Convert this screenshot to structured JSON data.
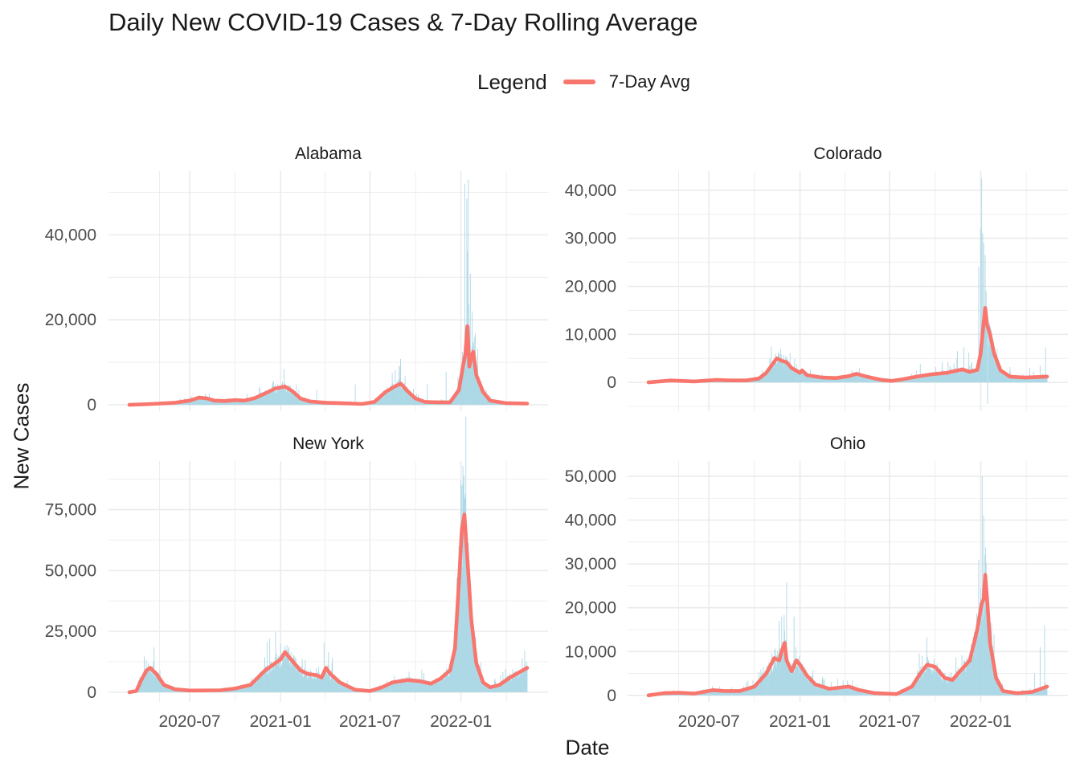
{
  "chart_data": {
    "type": "bar",
    "title": "Daily New COVID-19 Cases & 7-Day Rolling Average",
    "xlabel": "Date",
    "ylabel": "New Cases",
    "legend": {
      "title": "Legend",
      "placement": "top",
      "entries": [
        {
          "label": "7-Day Avg",
          "color": "#F8766D"
        }
      ]
    },
    "colors": {
      "bars": "#ADD8E6",
      "line": "#F8766D",
      "grid": "#EBEBEB"
    },
    "grid": true,
    "date_range": [
      "2020-03-01",
      "2022-05-15"
    ],
    "x_ticks": [
      "2020-07-01",
      "2021-01-01",
      "2021-07-01",
      "2022-01-01"
    ],
    "x_tick_labels": [
      "2020-07",
      "2021-01",
      "2021-07",
      "2022-01"
    ],
    "panels": [
      {
        "name": "Alabama",
        "ylim": [
          -1500,
          55000
        ],
        "y_ticks": [
          0,
          20000,
          40000
        ],
        "y_tick_labels": [
          "0",
          "20,000",
          "40,000"
        ],
        "avg_points": [
          [
            "2020-03-01",
            0
          ],
          [
            "2020-04-15",
            200
          ],
          [
            "2020-06-01",
            500
          ],
          [
            "2020-07-01",
            1000
          ],
          [
            "2020-07-20",
            1700
          ],
          [
            "2020-08-05",
            1500
          ],
          [
            "2020-08-20",
            1000
          ],
          [
            "2020-09-10",
            900
          ],
          [
            "2020-10-01",
            1100
          ],
          [
            "2020-10-20",
            1000
          ],
          [
            "2020-11-10",
            1600
          ],
          [
            "2020-12-01",
            2700
          ],
          [
            "2020-12-20",
            3800
          ],
          [
            "2021-01-10",
            4300
          ],
          [
            "2021-01-25",
            3200
          ],
          [
            "2021-02-10",
            1500
          ],
          [
            "2021-03-01",
            800
          ],
          [
            "2021-04-01",
            500
          ],
          [
            "2021-05-01",
            400
          ],
          [
            "2021-06-15",
            200
          ],
          [
            "2021-07-10",
            700
          ],
          [
            "2021-08-01",
            3000
          ],
          [
            "2021-08-20",
            4300
          ],
          [
            "2021-09-01",
            5000
          ],
          [
            "2021-09-15",
            3200
          ],
          [
            "2021-10-01",
            1500
          ],
          [
            "2021-10-20",
            700
          ],
          [
            "2021-11-15",
            600
          ],
          [
            "2021-12-10",
            600
          ],
          [
            "2021-12-28",
            3500
          ],
          [
            "2022-01-05",
            9000
          ],
          [
            "2022-01-10",
            12000
          ],
          [
            "2022-01-14",
            18500
          ],
          [
            "2022-01-18",
            9000
          ],
          [
            "2022-01-22",
            11500
          ],
          [
            "2022-01-26",
            12500
          ],
          [
            "2022-02-01",
            7000
          ],
          [
            "2022-02-15",
            3000
          ],
          [
            "2022-03-01",
            1000
          ],
          [
            "2022-04-01",
            400
          ],
          [
            "2022-05-15",
            300
          ]
        ],
        "bar_bursts": [
          [
            "2020-08-01",
            1600
          ],
          [
            "2020-10-25",
            2600
          ],
          [
            "2020-12-15",
            4600
          ],
          [
            "2021-01-09",
            5200
          ],
          [
            "2021-01-20",
            4400
          ],
          [
            "2021-03-15",
            3500
          ],
          [
            "2021-06-01",
            4800
          ],
          [
            "2021-08-15",
            7500
          ],
          [
            "2021-09-01",
            10800
          ],
          [
            "2021-09-10",
            6800
          ],
          [
            "2021-10-25",
            5000
          ],
          [
            "2021-12-02",
            7800
          ],
          [
            "2021-12-30",
            4300
          ],
          [
            "2022-01-04",
            12500
          ],
          [
            "2022-01-09",
            52000
          ],
          [
            "2022-01-13",
            48500
          ],
          [
            "2022-01-16",
            53000
          ],
          [
            "2022-01-20",
            30800
          ],
          [
            "2022-01-24",
            22000
          ],
          [
            "2022-01-28",
            16000
          ],
          [
            "2022-02-05",
            6500
          ],
          [
            "2022-02-20",
            2600
          ]
        ]
      },
      {
        "name": "Colorado",
        "ylim": [
          -6000,
          44000
        ],
        "y_ticks": [
          0,
          10000,
          20000,
          30000,
          40000
        ],
        "y_tick_labels": [
          "0",
          "10,000",
          "20,000",
          "30,000",
          "40,000"
        ],
        "avg_points": [
          [
            "2020-03-01",
            0
          ],
          [
            "2020-04-15",
            400
          ],
          [
            "2020-06-01",
            200
          ],
          [
            "2020-07-15",
            500
          ],
          [
            "2020-08-15",
            400
          ],
          [
            "2020-09-15",
            400
          ],
          [
            "2020-10-10",
            800
          ],
          [
            "2020-10-25",
            2000
          ],
          [
            "2020-11-08",
            4000
          ],
          [
            "2020-11-15",
            5000
          ],
          [
            "2020-11-25",
            4500
          ],
          [
            "2020-12-05",
            4200
          ],
          [
            "2020-12-15",
            3000
          ],
          [
            "2021-01-01",
            2000
          ],
          [
            "2021-01-05",
            2500
          ],
          [
            "2021-01-15",
            1500
          ],
          [
            "2021-02-15",
            1000
          ],
          [
            "2021-03-15",
            900
          ],
          [
            "2021-04-10",
            1300
          ],
          [
            "2021-04-25",
            1800
          ],
          [
            "2021-05-15",
            1200
          ],
          [
            "2021-06-15",
            500
          ],
          [
            "2021-07-05",
            300
          ],
          [
            "2021-07-25",
            600
          ],
          [
            "2021-08-25",
            1200
          ],
          [
            "2021-09-25",
            1700
          ],
          [
            "2021-10-25",
            2000
          ],
          [
            "2021-11-15",
            2500
          ],
          [
            "2021-11-25",
            2700
          ],
          [
            "2021-12-10",
            2200
          ],
          [
            "2021-12-25",
            2600
          ],
          [
            "2022-01-01",
            6000
          ],
          [
            "2022-01-06",
            11500
          ],
          [
            "2022-01-10",
            15500
          ],
          [
            "2022-01-14",
            12000
          ],
          [
            "2022-01-20",
            10000
          ],
          [
            "2022-01-28",
            6000
          ],
          [
            "2022-02-10",
            2500
          ],
          [
            "2022-03-01",
            1200
          ],
          [
            "2022-04-01",
            1000
          ],
          [
            "2022-05-15",
            1200
          ]
        ],
        "bar_bursts": [
          [
            "2020-11-20",
            6000
          ],
          [
            "2020-12-05",
            5500
          ],
          [
            "2021-09-01",
            3800
          ],
          [
            "2021-10-15",
            4300
          ],
          [
            "2021-11-15",
            6500
          ],
          [
            "2021-11-28",
            7300
          ],
          [
            "2021-12-08",
            6200
          ],
          [
            "2021-12-28",
            24000
          ],
          [
            "2022-01-01",
            32000
          ],
          [
            "2022-01-03",
            42500
          ],
          [
            "2022-01-05",
            31000
          ],
          [
            "2022-01-07",
            29000
          ],
          [
            "2022-01-10",
            26500
          ],
          [
            "2022-01-12",
            19000
          ],
          [
            "2022-01-15",
            -4500
          ],
          [
            "2022-02-05",
            4200
          ],
          [
            "2022-03-01",
            3200
          ],
          [
            "2022-04-10",
            3000
          ],
          [
            "2022-05-01",
            3500
          ],
          [
            "2022-05-12",
            7300
          ]
        ]
      },
      {
        "name": "New York",
        "ylim": [
          -4000,
          95000
        ],
        "y_ticks": [
          0,
          25000,
          50000,
          75000
        ],
        "y_tick_labels": [
          "0",
          "25,000",
          "50,000",
          "75,000"
        ],
        "avg_points": [
          [
            "2020-03-01",
            0
          ],
          [
            "2020-03-15",
            500
          ],
          [
            "2020-03-25",
            5000
          ],
          [
            "2020-04-05",
            9000
          ],
          [
            "2020-04-12",
            10000
          ],
          [
            "2020-04-25",
            7500
          ],
          [
            "2020-05-10",
            3000
          ],
          [
            "2020-06-01",
            1200
          ],
          [
            "2020-07-01",
            700
          ],
          [
            "2020-09-01",
            800
          ],
          [
            "2020-10-01",
            1500
          ],
          [
            "2020-11-01",
            3000
          ],
          [
            "2020-12-01",
            9000
          ],
          [
            "2020-12-15",
            11000
          ],
          [
            "2021-01-01",
            13500
          ],
          [
            "2021-01-10",
            16500
          ],
          [
            "2021-01-20",
            14000
          ],
          [
            "2021-02-10",
            9000
          ],
          [
            "2021-02-25",
            7500
          ],
          [
            "2021-03-15",
            7000
          ],
          [
            "2021-03-25",
            6000
          ],
          [
            "2021-04-03",
            10000
          ],
          [
            "2021-04-12",
            7500
          ],
          [
            "2021-05-01",
            4000
          ],
          [
            "2021-06-01",
            1000
          ],
          [
            "2021-07-01",
            500
          ],
          [
            "2021-07-25",
            2000
          ],
          [
            "2021-08-15",
            4000
          ],
          [
            "2021-09-15",
            5000
          ],
          [
            "2021-10-10",
            4500
          ],
          [
            "2021-11-01",
            3500
          ],
          [
            "2021-11-20",
            5500
          ],
          [
            "2021-12-10",
            9000
          ],
          [
            "2021-12-20",
            18000
          ],
          [
            "2021-12-28",
            45000
          ],
          [
            "2022-01-03",
            67000
          ],
          [
            "2022-01-08",
            73000
          ],
          [
            "2022-01-14",
            55000
          ],
          [
            "2022-01-22",
            30000
          ],
          [
            "2022-02-01",
            12000
          ],
          [
            "2022-02-15",
            4000
          ],
          [
            "2022-03-01",
            2000
          ],
          [
            "2022-03-20",
            3000
          ],
          [
            "2022-04-10",
            6000
          ],
          [
            "2022-05-15",
            10000
          ]
        ],
        "bar_bursts": [
          [
            "2020-04-08",
            12000
          ],
          [
            "2021-01-10",
            19000
          ],
          [
            "2021-03-30",
            20500
          ],
          [
            "2021-12-28",
            60000
          ],
          [
            "2022-01-01",
            87000
          ],
          [
            "2022-01-03",
            85000
          ],
          [
            "2022-01-05",
            93000
          ],
          [
            "2022-01-07",
            89000
          ],
          [
            "2022-01-09",
            80000
          ],
          [
            "2022-01-12",
            58000
          ],
          [
            "2022-05-05",
            14000
          ],
          [
            "2022-05-10",
            17000
          ]
        ]
      },
      {
        "name": "Ohio",
        "ylim": [
          -1500,
          53500
        ],
        "y_ticks": [
          0,
          10000,
          20000,
          30000,
          40000,
          50000
        ],
        "y_tick_labels": [
          "0",
          "10,000",
          "20,000",
          "30,000",
          "40,000",
          "50,000"
        ],
        "avg_points": [
          [
            "2020-03-01",
            0
          ],
          [
            "2020-04-01",
            500
          ],
          [
            "2020-05-01",
            600
          ],
          [
            "2020-06-01",
            400
          ],
          [
            "2020-07-10",
            1200
          ],
          [
            "2020-08-01",
            1000
          ],
          [
            "2020-09-01",
            1000
          ],
          [
            "2020-10-01",
            2000
          ],
          [
            "2020-10-25",
            5000
          ],
          [
            "2020-11-10",
            8500
          ],
          [
            "2020-11-20",
            8000
          ],
          [
            "2020-11-25",
            10000
          ],
          [
            "2020-12-01",
            12000
          ],
          [
            "2020-12-05",
            8000
          ],
          [
            "2020-12-15",
            5500
          ],
          [
            "2020-12-25",
            8000
          ],
          [
            "2021-01-01",
            7000
          ],
          [
            "2021-01-15",
            4500
          ],
          [
            "2021-02-01",
            2500
          ],
          [
            "2021-03-01",
            1500
          ],
          [
            "2021-04-10",
            2000
          ],
          [
            "2021-05-01",
            1200
          ],
          [
            "2021-06-01",
            500
          ],
          [
            "2021-07-15",
            300
          ],
          [
            "2021-08-15",
            2000
          ],
          [
            "2021-09-01",
            5000
          ],
          [
            "2021-09-15",
            7000
          ],
          [
            "2021-10-01",
            6500
          ],
          [
            "2021-10-20",
            4000
          ],
          [
            "2021-11-05",
            3500
          ],
          [
            "2021-11-20",
            5500
          ],
          [
            "2021-12-10",
            8000
          ],
          [
            "2021-12-25",
            15000
          ],
          [
            "2022-01-03",
            21000
          ],
          [
            "2022-01-07",
            22000
          ],
          [
            "2022-01-10",
            27500
          ],
          [
            "2022-01-14",
            22000
          ],
          [
            "2022-01-20",
            12000
          ],
          [
            "2022-02-01",
            4000
          ],
          [
            "2022-02-15",
            1000
          ],
          [
            "2022-03-15",
            500
          ],
          [
            "2022-04-15",
            800
          ],
          [
            "2022-05-15",
            2000
          ]
        ],
        "bar_bursts": [
          [
            "2020-11-20",
            17000
          ],
          [
            "2020-12-05",
            25800
          ],
          [
            "2020-12-20",
            18000
          ],
          [
            "2021-09-05",
            9000
          ],
          [
            "2021-12-28",
            31000
          ],
          [
            "2022-01-04",
            50000
          ],
          [
            "2022-01-07",
            41000
          ],
          [
            "2022-01-10",
            32000
          ],
          [
            "2022-04-20",
            5000
          ],
          [
            "2022-05-01",
            11000
          ],
          [
            "2022-05-10",
            16000
          ]
        ]
      }
    ]
  }
}
